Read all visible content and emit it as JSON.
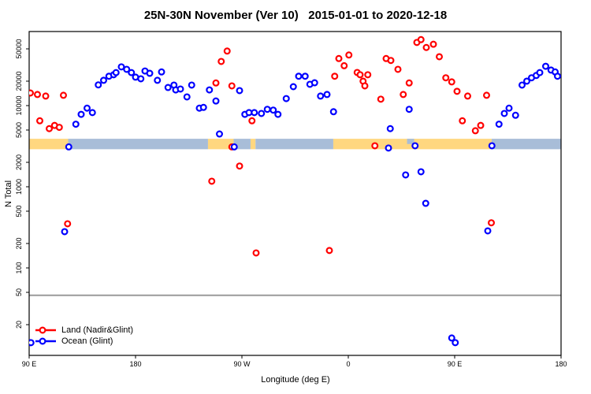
{
  "chart_data": {
    "type": "scatter",
    "title": "25N-30N November (Ver 10)   2015-01-01 to 2020-12-18",
    "xlabel": "Longitude (deg E)",
    "ylabel": "N Total",
    "x_axis": {
      "note": "longitude axis wraps: plotted 90E eastward through 180, 90W, 0, 90E to 180",
      "range_deg": [
        90,
        540
      ],
      "ticks": [
        {
          "lon": 90,
          "label": "90 E"
        },
        {
          "lon": 180,
          "label": "180"
        },
        {
          "lon": 270,
          "label": "90 W"
        },
        {
          "lon": 360,
          "label": "0"
        },
        {
          "lon": 450,
          "label": "90 E"
        },
        {
          "lon": 540,
          "label": "180"
        }
      ]
    },
    "y_axis": {
      "scale": "log",
      "ticks": [
        20,
        50,
        100,
        200,
        500,
        1000,
        2000,
        5000,
        10000,
        20000,
        50000
      ],
      "range": [
        8.5,
        80000
      ],
      "grid": false
    },
    "legend": [
      {
        "label": "Land (Nadir&Glint)",
        "color": "#ff0000"
      },
      {
        "label": "Ocean (Glint)",
        "color": "#0000ff"
      }
    ],
    "legend_position": "bottom-left",
    "reference_line": {
      "value": 46,
      "color": "#9a9a9a"
    },
    "coast_band": {
      "description": "land/ocean longitude strip drawn across the plot",
      "value_range": [
        2900,
        3900
      ],
      "land_color": "#ffd780",
      "ocean_color": "#a8bdd8",
      "segments": [
        {
          "from": 90,
          "to": 123,
          "surface": "land"
        },
        {
          "from": 123,
          "to": 241.3,
          "surface": "ocean"
        },
        {
          "from": 241.3,
          "to": 263,
          "surface": "land"
        },
        {
          "from": 263,
          "to": 277.3,
          "surface": "ocean"
        },
        {
          "from": 277.3,
          "to": 281.5,
          "surface": "land"
        },
        {
          "from": 281.5,
          "to": 347.3,
          "surface": "ocean"
        },
        {
          "from": 347.3,
          "to": 481.3,
          "surface": "land"
        },
        {
          "from": 481.3,
          "to": 540,
          "surface": "ocean"
        }
      ],
      "flecks": [
        {
          "from": 409.7,
          "to": 415.7,
          "surface": "ocean"
        }
      ]
    },
    "series": [
      {
        "name": "Land (Nadir&Glint)",
        "color": "#ff0000",
        "points": [
          [
            91,
            14300
          ],
          [
            97,
            13700
          ],
          [
            99,
            6500
          ],
          [
            104,
            13100
          ],
          [
            107,
            5200
          ],
          [
            111.5,
            5700
          ],
          [
            115.5,
            5400
          ],
          [
            119,
            13400
          ],
          [
            122.5,
            350
          ],
          [
            244.5,
            1170
          ],
          [
            248,
            19000
          ],
          [
            252.5,
            35000
          ],
          [
            257.5,
            47000
          ],
          [
            261.5,
            17500
          ],
          [
            261.5,
            3100
          ],
          [
            268,
            1800
          ],
          [
            278.5,
            6500
          ],
          [
            282,
            153
          ],
          [
            344,
            164
          ],
          [
            348.5,
            23000
          ],
          [
            352,
            38000
          ],
          [
            356.5,
            31000
          ],
          [
            360.5,
            42000
          ],
          [
            367.5,
            25600
          ],
          [
            370,
            24000
          ],
          [
            372.5,
            20000
          ],
          [
            374,
            17500
          ],
          [
            376.5,
            24000
          ],
          [
            382.5,
            3200
          ],
          [
            387.5,
            12000
          ],
          [
            392,
            38000
          ],
          [
            396,
            36000
          ],
          [
            402,
            28000
          ],
          [
            406.5,
            13700
          ],
          [
            411.5,
            19000
          ],
          [
            418,
            60000
          ],
          [
            421.5,
            65000
          ],
          [
            426,
            52000
          ],
          [
            432,
            57000
          ],
          [
            437,
            40000
          ],
          [
            442.5,
            22000
          ],
          [
            447.5,
            19600
          ],
          [
            452,
            15000
          ],
          [
            456.5,
            6500
          ],
          [
            461,
            13100
          ],
          [
            467.5,
            4900
          ],
          [
            472,
            5700
          ],
          [
            477,
            13400
          ],
          [
            481,
            360
          ]
        ]
      },
      {
        "name": "Ocean (Glint)",
        "color": "#0000ff",
        "points": [
          [
            91.5,
            12
          ],
          [
            120,
            280
          ],
          [
            123.5,
            3100
          ],
          [
            129.5,
            5900
          ],
          [
            134,
            7800
          ],
          [
            139,
            9300
          ],
          [
            143.5,
            8200
          ],
          [
            148.5,
            18000
          ],
          [
            153,
            20500
          ],
          [
            157.5,
            23000
          ],
          [
            161.5,
            24000
          ],
          [
            163.5,
            25500
          ],
          [
            168,
            30000
          ],
          [
            172.5,
            28000
          ],
          [
            176.5,
            25500
          ],
          [
            180,
            22400
          ],
          [
            184.5,
            21400
          ],
          [
            188,
            26700
          ],
          [
            192,
            25000
          ],
          [
            198.5,
            20500
          ],
          [
            202,
            26000
          ],
          [
            207.5,
            16700
          ],
          [
            212.5,
            17900
          ],
          [
            214,
            15600
          ],
          [
            218,
            16000
          ],
          [
            223.5,
            12800
          ],
          [
            227.5,
            17900
          ],
          [
            234,
            9300
          ],
          [
            237.5,
            9500
          ],
          [
            242.5,
            15600
          ],
          [
            248,
            11400
          ],
          [
            251,
            4470
          ],
          [
            263.5,
            3100
          ],
          [
            268,
            15300
          ],
          [
            272.5,
            7800
          ],
          [
            276,
            8200
          ],
          [
            280.5,
            8200
          ],
          [
            286.5,
            8000
          ],
          [
            291.5,
            9000
          ],
          [
            296.5,
            8800
          ],
          [
            300.5,
            7800
          ],
          [
            307.5,
            12200
          ],
          [
            313.5,
            17100
          ],
          [
            318,
            23000
          ],
          [
            323.5,
            23000
          ],
          [
            327.5,
            18300
          ],
          [
            331.5,
            19100
          ],
          [
            336.5,
            13100
          ],
          [
            342,
            13700
          ],
          [
            347.5,
            8400
          ],
          [
            394,
            3000
          ],
          [
            395.5,
            5200
          ],
          [
            408.5,
            1400
          ],
          [
            411.5,
            9000
          ],
          [
            416.5,
            3200
          ],
          [
            421.5,
            1530
          ],
          [
            425.5,
            625
          ],
          [
            447.5,
            13.7
          ],
          [
            450.5,
            12
          ],
          [
            478,
            286
          ],
          [
            481.5,
            3200
          ],
          [
            487.5,
            5900
          ],
          [
            492,
            8000
          ],
          [
            496,
            9300
          ],
          [
            501.5,
            7600
          ],
          [
            507,
            17900
          ],
          [
            511,
            20000
          ],
          [
            515,
            22000
          ],
          [
            519,
            23500
          ],
          [
            522,
            25500
          ],
          [
            527,
            30500
          ],
          [
            531.5,
            27400
          ],
          [
            535,
            26000
          ],
          [
            537,
            23000
          ]
        ]
      }
    ]
  }
}
